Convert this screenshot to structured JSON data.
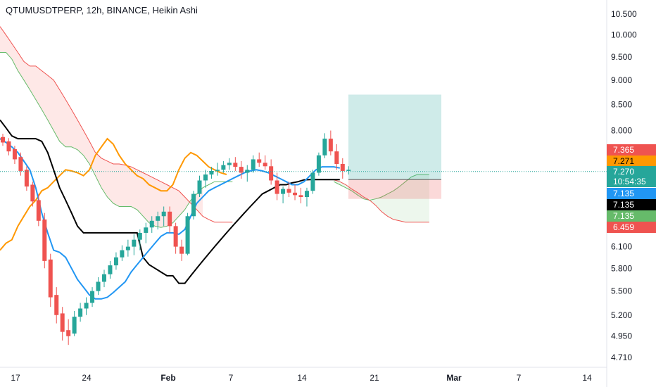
{
  "header": {
    "title": "QTUMUSDTPERP, 12h, BINANCE, Heikin Ashi"
  },
  "colors": {
    "up": "#26a69a",
    "down": "#ef5350",
    "tenkan": "#2196f3",
    "kijun": "#000000",
    "lagging": "#ff9800",
    "span_a": "#66bb6a",
    "span_b": "#ef5350",
    "cloud_bear": "rgba(244,67,54,0.12)",
    "cloud_bull": "rgba(76,175,80,0.10)",
    "target_zone": "rgba(38,166,154,0.22)",
    "stop_zone": "rgba(239,83,80,0.22)"
  },
  "chart_data": {
    "type": "candlestick",
    "style": "Heikin Ashi",
    "symbol": "QTUMUSDTPERP",
    "interval": "12h",
    "exchange": "BINANCE",
    "price_axis": {
      "ticks": [
        "10.500",
        "10.000",
        "9.500",
        "9.000",
        "8.500",
        "8.000",
        "6.100",
        "5.800",
        "5.500",
        "5.200",
        "4.950",
        "4.710"
      ],
      "scale": "log",
      "range": [
        4.5,
        10.8
      ]
    },
    "time_axis": {
      "ticks": [
        "17",
        "24",
        "Feb",
        "7",
        "14",
        "21",
        "Mar",
        "7",
        "14"
      ],
      "bold": [
        "Feb",
        "Mar"
      ]
    },
    "candles": [
      [
        7.88,
        7.94,
        7.72,
        7.78
      ],
      [
        7.8,
        7.86,
        7.55,
        7.62
      ],
      [
        7.66,
        7.72,
        7.4,
        7.48
      ],
      [
        7.52,
        7.6,
        7.2,
        7.28
      ],
      [
        7.3,
        7.36,
        6.95,
        7.02
      ],
      [
        7.05,
        7.1,
        6.7,
        6.78
      ],
      [
        6.8,
        6.9,
        6.4,
        6.48
      ],
      [
        6.5,
        6.6,
        5.8,
        5.9
      ],
      [
        5.92,
        6.0,
        5.3,
        5.42
      ],
      [
        5.45,
        5.55,
        5.1,
        5.2
      ],
      [
        5.22,
        5.3,
        4.9,
        5.0
      ],
      [
        5.02,
        5.15,
        4.85,
        4.95
      ],
      [
        4.98,
        5.25,
        4.95,
        5.18
      ],
      [
        5.18,
        5.35,
        5.12,
        5.28
      ],
      [
        5.28,
        5.42,
        5.2,
        5.35
      ],
      [
        5.35,
        5.55,
        5.3,
        5.5
      ],
      [
        5.5,
        5.68,
        5.45,
        5.62
      ],
      [
        5.62,
        5.78,
        5.55,
        5.72
      ],
      [
        5.72,
        5.9,
        5.66,
        5.84
      ],
      [
        5.84,
        6.02,
        5.78,
        5.95
      ],
      [
        5.95,
        6.12,
        5.9,
        6.05
      ],
      [
        6.05,
        6.2,
        5.96,
        6.1
      ],
      [
        6.1,
        6.28,
        5.98,
        6.2
      ],
      [
        6.2,
        6.35,
        6.05,
        6.3
      ],
      [
        6.3,
        6.45,
        6.15,
        6.38
      ],
      [
        6.38,
        6.55,
        6.3,
        6.48
      ],
      [
        6.48,
        6.62,
        6.35,
        6.55
      ],
      [
        6.55,
        6.7,
        6.4,
        6.62
      ],
      [
        6.62,
        6.7,
        6.3,
        6.4
      ],
      [
        6.4,
        6.45,
        6.0,
        6.1
      ],
      [
        6.1,
        6.2,
        5.9,
        6.0
      ],
      [
        6.0,
        6.6,
        5.98,
        6.55
      ],
      [
        6.55,
        6.95,
        6.5,
        6.9
      ],
      [
        6.9,
        7.2,
        6.85,
        7.12
      ],
      [
        7.12,
        7.3,
        7.0,
        7.22
      ],
      [
        7.22,
        7.35,
        7.15,
        7.28
      ],
      [
        7.28,
        7.42,
        7.2,
        7.3
      ],
      [
        7.3,
        7.45,
        7.25,
        7.38
      ],
      [
        7.38,
        7.5,
        7.3,
        7.42
      ],
      [
        7.42,
        7.52,
        7.28,
        7.35
      ],
      [
        7.35,
        7.45,
        7.15,
        7.25
      ],
      [
        7.25,
        7.38,
        7.1,
        7.3
      ],
      [
        7.3,
        7.55,
        7.25,
        7.48
      ],
      [
        7.48,
        7.6,
        7.35,
        7.42
      ],
      [
        7.42,
        7.55,
        7.3,
        7.36
      ],
      [
        7.36,
        7.48,
        7.05,
        7.12
      ],
      [
        7.12,
        7.25,
        6.8,
        6.9
      ],
      [
        6.9,
        7.02,
        6.75,
        6.98
      ],
      [
        6.98,
        7.1,
        6.85,
        6.92
      ],
      [
        6.92,
        7.05,
        6.8,
        6.88
      ],
      [
        6.88,
        7.0,
        6.75,
        6.85
      ],
      [
        6.85,
        7.0,
        6.7,
        6.95
      ],
      [
        6.95,
        7.3,
        6.9,
        7.25
      ],
      [
        7.25,
        7.6,
        7.2,
        7.55
      ],
      [
        7.55,
        7.95,
        7.5,
        7.85
      ],
      [
        7.85,
        8.0,
        7.55,
        7.62
      ],
      [
        7.62,
        7.75,
        7.3,
        7.4
      ],
      [
        7.4,
        7.5,
        7.15,
        7.28
      ],
      [
        7.28,
        7.36,
        7.22,
        7.3
      ]
    ],
    "last_price": 7.27,
    "countdown": "10:54:35",
    "price_labels": [
      "7.365",
      "7.271",
      "7.270",
      "7.135",
      "7.135",
      "7.135",
      "6.459"
    ],
    "tenkan": [
      7.85,
      7.78,
      7.7,
      7.6,
      7.45,
      7.3,
      7.0,
      6.6,
      6.3,
      6.05,
      6.02,
      5.95,
      5.8,
      5.65,
      5.55,
      5.45,
      5.4,
      5.4,
      5.42,
      5.48,
      5.55,
      5.62,
      5.75,
      5.85,
      5.95,
      6.05,
      6.15,
      6.25,
      6.3,
      6.3,
      6.28,
      6.35,
      6.55,
      6.75,
      6.85,
      6.95,
      7.0,
      7.05,
      7.1,
      7.15,
      7.2,
      7.25,
      7.28,
      7.3,
      7.28,
      7.25,
      7.2,
      7.15,
      7.1,
      7.05,
      7.05,
      7.1,
      7.2,
      7.3,
      7.35,
      7.35,
      7.35,
      7.33
    ],
    "kijun": [
      8.2,
      8.05,
      7.9,
      7.85,
      7.85,
      7.85,
      7.85,
      7.8,
      7.6,
      7.3,
      7.0,
      6.8,
      6.6,
      6.4,
      6.3,
      6.3,
      6.3,
      6.3,
      6.3,
      6.3,
      6.3,
      6.3,
      6.3,
      6.3,
      5.95,
      5.85,
      5.8,
      5.75,
      5.7,
      5.7,
      5.6,
      5.6,
      5.7,
      5.8,
      5.9,
      6.0,
      6.1,
      6.2,
      6.3,
      6.4,
      6.5,
      6.6,
      6.7,
      6.8,
      6.9,
      6.95,
      7.0,
      7.05,
      7.05,
      7.08,
      7.1,
      7.13,
      7.135,
      7.135,
      7.135,
      7.135,
      7.135,
      7.135
    ],
    "lagging": [
      6.05,
      6.15,
      6.2,
      6.4,
      6.55,
      6.7,
      6.8,
      6.95,
      7.0,
      7.1,
      7.2,
      7.3,
      7.28,
      7.25,
      7.2,
      7.3,
      7.55,
      7.7,
      7.85,
      7.75,
      7.55,
      7.4,
      7.3,
      7.2,
      7.15,
      7.05,
      7.0,
      6.95,
      6.95,
      7.05,
      7.3,
      7.5,
      7.6,
      7.55,
      7.45,
      7.35,
      7.3,
      7.25,
      7.22
    ],
    "span_a": [
      9.6,
      9.6,
      9.45,
      9.2,
      9.0,
      8.8,
      8.6,
      8.4,
      8.2,
      8.0,
      7.8,
      7.7,
      7.7,
      7.65,
      7.55,
      7.4,
      7.2,
      7.0,
      6.85,
      6.75,
      6.7,
      6.7,
      6.7,
      6.65,
      6.55,
      6.45,
      6.4,
      6.38,
      6.4,
      6.45,
      6.55,
      6.65,
      6.8,
      6.9,
      7.0,
      7.05,
      7.1,
      7.1,
      7.1,
      7.1
    ],
    "span_b": [
      10.2,
      10.0,
      9.8,
      9.6,
      9.4,
      9.3,
      9.3,
      9.2,
      9.1,
      9.0,
      8.8,
      8.6,
      8.4,
      8.2,
      8.0,
      7.8,
      7.6,
      7.5,
      7.45,
      7.4,
      7.4,
      7.38,
      7.35,
      7.3,
      7.25,
      7.2,
      7.15,
      7.1,
      7.05,
      7.0,
      6.95,
      6.85,
      6.75,
      6.65,
      6.55,
      6.5,
      6.46,
      6.46,
      6.46,
      6.46
    ],
    "position": {
      "entry": 7.135,
      "target": 8.7,
      "stop": 6.82
    }
  }
}
